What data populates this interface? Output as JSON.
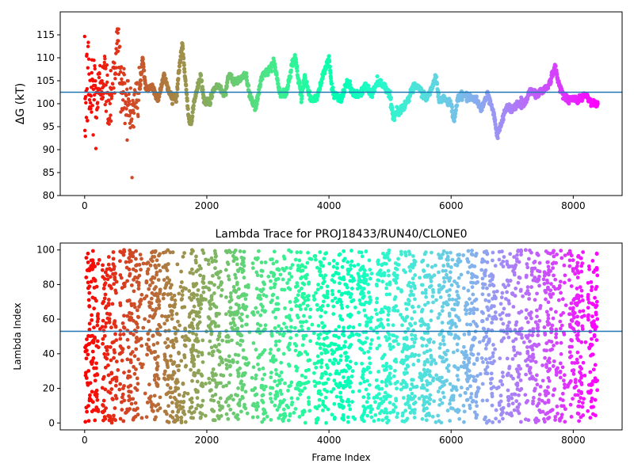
{
  "chart_data": [
    {
      "type": "scatter",
      "title": "",
      "xlabel": "",
      "ylabel": "ΔG (kT)",
      "xlim": [
        -400,
        8800
      ],
      "ylim": [
        80,
        120
      ],
      "xticks": [
        0,
        2000,
        4000,
        6000,
        8000
      ],
      "xtick_labels": [
        "0",
        "2000",
        "4000",
        "6000",
        "8000"
      ],
      "yticks": [
        80,
        85,
        90,
        95,
        100,
        105,
        110,
        115
      ],
      "ytick_labels": [
        "80",
        "85",
        "90",
        "95",
        "100",
        "105",
        "110",
        "115"
      ],
      "reference_line": 102.5,
      "reference_line_color": "#1f77b4",
      "colormap": "rainbow (red at frame 0 → violet at last frame)",
      "grid": false,
      "series": [
        {
          "x": [
            0,
            50,
            100,
            150,
            200,
            300,
            400,
            500,
            550,
            600,
            700,
            750,
            800,
            900,
            950,
            1000,
            1100,
            1200,
            1300,
            1400,
            1500,
            1550,
            1600,
            1700,
            1750,
            1800,
            1900,
            1950,
            2050,
            2100,
            2200,
            2300,
            2350,
            2450,
            2500,
            2600,
            2650,
            2700,
            2800,
            2900,
            3000,
            3050,
            3100,
            3200,
            3300,
            3400,
            3450,
            3550,
            3600,
            3700,
            3800,
            3900,
            4000,
            4050,
            4100,
            4200,
            4300,
            4400,
            4500,
            4600,
            4700,
            4800,
            4900,
            5000,
            5050,
            5100,
            5200,
            5300,
            5400,
            5500,
            5600,
            5700,
            5750,
            5800,
            5900,
            6000,
            6050,
            6100,
            6200,
            6300,
            6400,
            6500,
            6600,
            6700,
            6750,
            6800,
            6900,
            7000,
            7100,
            7200,
            7300,
            7400,
            7500,
            7600,
            7700,
            7750,
            7800,
            7900,
            8000,
            8100,
            8200,
            8300,
            8400
          ],
          "y": [
            98,
            105,
            101,
            104,
            100,
            107,
            100,
            109,
            113,
            103,
            101,
            97,
            99,
            103,
            110,
            103,
            104,
            101,
            106,
            102,
            101,
            108,
            113,
            97,
            96,
            101,
            106,
            101,
            100,
            103,
            104,
            102,
            106,
            105,
            105,
            106,
            106,
            102,
            99,
            106,
            107,
            108,
            109,
            102,
            102,
            109,
            110,
            101,
            106,
            101,
            101,
            106,
            110,
            103,
            102,
            101,
            105,
            102,
            102,
            104,
            102,
            105,
            104,
            102,
            97,
            98,
            99,
            101,
            104,
            103,
            101,
            104,
            106,
            101,
            101,
            100,
            96,
            101,
            102,
            101,
            101,
            99,
            102,
            98,
            93,
            95,
            99,
            99,
            100,
            100,
            103,
            102,
            103,
            104,
            108,
            105,
            103,
            101,
            101,
            101,
            102,
            100,
            100
          ]
        }
      ]
    },
    {
      "type": "scatter",
      "title": "Lambda Trace for PROJ18433/RUN40/CLONE0",
      "xlabel": "Frame Index",
      "ylabel": "Lambda Index",
      "xlim": [
        -400,
        8800
      ],
      "ylim": [
        -4,
        104
      ],
      "xticks": [
        0,
        2000,
        4000,
        6000,
        8000
      ],
      "xtick_labels": [
        "0",
        "2000",
        "4000",
        "6000",
        "8000"
      ],
      "yticks": [
        0,
        20,
        40,
        60,
        80,
        100
      ],
      "ytick_labels": [
        "0",
        "20",
        "40",
        "60",
        "80",
        "100"
      ],
      "reference_line": 53,
      "reference_line_color": "#1f77b4",
      "colormap": "rainbow (red at frame 0 → violet at last frame)",
      "grid": false,
      "series": [
        {
          "x_range": [
            0,
            8400
          ],
          "y_range": [
            0,
            100
          ],
          "point_count_approx": 4200
        }
      ]
    }
  ]
}
